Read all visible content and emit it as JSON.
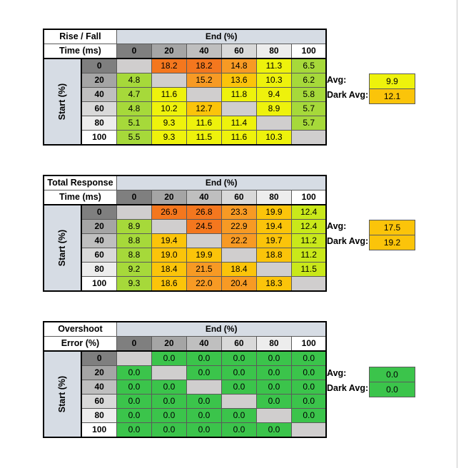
{
  "colors": {
    "header_gray_0": "#7f7f7f",
    "header_gray_20": "#a5a5a5",
    "header_gray_40": "#bfbfbf",
    "header_gray_60": "#d9d9d9",
    "header_gray_80": "#ededed",
    "header_white": "#ffffff",
    "header_blue": "#d6dce4",
    "diag_gray": "#d0cece",
    "cell_orange_dark": "#f4771e",
    "cell_orange": "#f79a24",
    "cell_amber": "#fbc40a",
    "cell_yellow": "#eef20c",
    "cell_yellowgreen": "#c9e81a",
    "cell_lime": "#a6d93a",
    "cell_green": "#3bc44b"
  },
  "tables": [
    {
      "title_line1": "Rise / Fall",
      "title_line2": "Time (ms)",
      "end_label": "End (%)",
      "start_label": "Start (%)",
      "cols": [
        "0",
        "20",
        "40",
        "60",
        "80",
        "100"
      ],
      "rows": [
        {
          "label": "0",
          "cells": [
            "",
            "18.2",
            "18.2",
            "14.8",
            "11.3",
            "6.5"
          ]
        },
        {
          "label": "20",
          "cells": [
            "4.8",
            "",
            "15.2",
            "13.6",
            "10.3",
            "6.2"
          ]
        },
        {
          "label": "40",
          "cells": [
            "4.7",
            "11.6",
            "",
            "11.8",
            "9.4",
            "5.8"
          ]
        },
        {
          "label": "60",
          "cells": [
            "4.8",
            "10.2",
            "12.7",
            "",
            "8.9",
            "5.7"
          ]
        },
        {
          "label": "80",
          "cells": [
            "5.1",
            "9.3",
            "11.6",
            "11.4",
            "",
            "5.7"
          ]
        },
        {
          "label": "100",
          "cells": [
            "5.5",
            "9.3",
            "11.5",
            "11.6",
            "10.3",
            ""
          ]
        }
      ],
      "avg_label": "Avg:",
      "avg_value": "9.9",
      "dark_avg_label": "Dark Avg:",
      "dark_avg_value": "12.1"
    },
    {
      "title_line1": "Total Response",
      "title_line2": "Time (ms)",
      "end_label": "End (%)",
      "start_label": "Start (%)",
      "cols": [
        "0",
        "20",
        "40",
        "60",
        "80",
        "100"
      ],
      "rows": [
        {
          "label": "0",
          "cells": [
            "",
            "26.9",
            "26.8",
            "23.3",
            "19.9",
            "12.4"
          ]
        },
        {
          "label": "20",
          "cells": [
            "8.9",
            "",
            "24.5",
            "22.9",
            "19.4",
            "12.4"
          ]
        },
        {
          "label": "40",
          "cells": [
            "8.8",
            "19.4",
            "",
            "22.2",
            "19.7",
            "11.2"
          ]
        },
        {
          "label": "60",
          "cells": [
            "8.8",
            "19.0",
            "19.9",
            "",
            "18.8",
            "11.2"
          ]
        },
        {
          "label": "80",
          "cells": [
            "9.2",
            "18.4",
            "21.5",
            "18.4",
            "",
            "11.5"
          ]
        },
        {
          "label": "100",
          "cells": [
            "9.3",
            "18.6",
            "22.0",
            "20.4",
            "18.3",
            ""
          ]
        }
      ],
      "avg_label": "Avg:",
      "avg_value": "17.5",
      "dark_avg_label": "Dark Avg:",
      "dark_avg_value": "19.2"
    },
    {
      "title_line1": "Overshoot",
      "title_line2": "Error (%)",
      "end_label": "End (%)",
      "start_label": "Start (%)",
      "cols": [
        "0",
        "20",
        "40",
        "60",
        "80",
        "100"
      ],
      "rows": [
        {
          "label": "0",
          "cells": [
            "",
            "0.0",
            "0.0",
            "0.0",
            "0.0",
            "0.0"
          ]
        },
        {
          "label": "20",
          "cells": [
            "0.0",
            "",
            "0.0",
            "0.0",
            "0.0",
            "0.0"
          ]
        },
        {
          "label": "40",
          "cells": [
            "0.0",
            "0.0",
            "",
            "0.0",
            "0.0",
            "0.0"
          ]
        },
        {
          "label": "60",
          "cells": [
            "0.0",
            "0.0",
            "0.0",
            "",
            "0.0",
            "0.0"
          ]
        },
        {
          "label": "80",
          "cells": [
            "0.0",
            "0.0",
            "0.0",
            "0.0",
            "",
            "0.0"
          ]
        },
        {
          "label": "100",
          "cells": [
            "0.0",
            "0.0",
            "0.0",
            "0.0",
            "0.0",
            ""
          ]
        }
      ],
      "avg_label": "Avg:",
      "avg_value": "0.0",
      "dark_avg_label": "Dark Avg:",
      "dark_avg_value": "0.0"
    }
  ]
}
